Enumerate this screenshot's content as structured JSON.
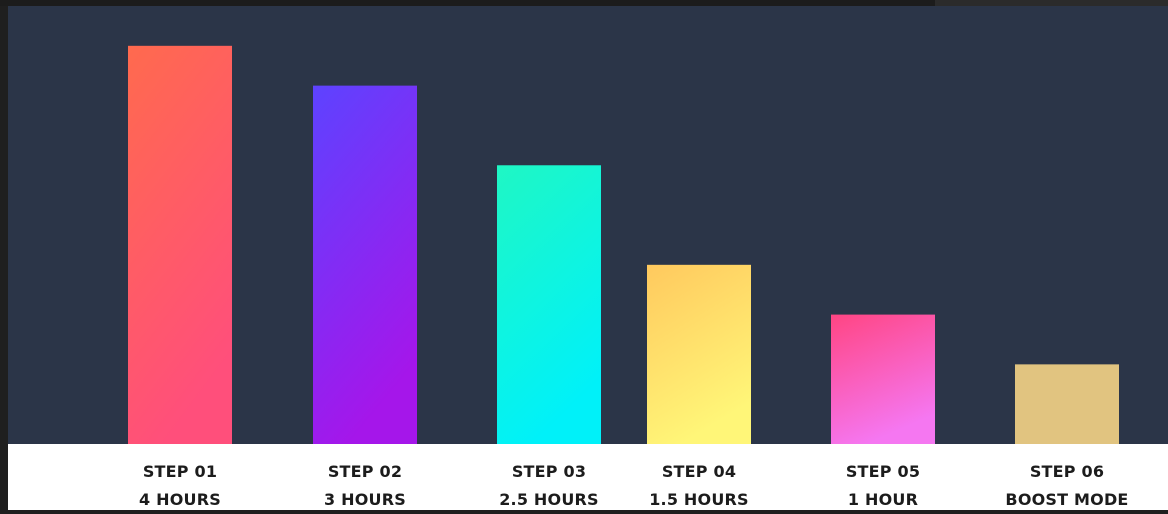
{
  "chart_data": {
    "type": "bar",
    "categories": [
      "STEP 01",
      "STEP 02",
      "STEP 03",
      "STEP 04",
      "STEP 05",
      "STEP 06"
    ],
    "sublabels": [
      "4 HOURS",
      "3 HOURS",
      "2.5 HOURS",
      "1.5 HOURS",
      "1 HOUR",
      "BOOST MODE"
    ],
    "values": [
      4,
      3.6,
      2.8,
      1.8,
      1.3,
      0.8
    ],
    "ylim": [
      0,
      4.4
    ],
    "grid": false,
    "title": "",
    "xlabel": "",
    "ylabel": "",
    "colors": [
      [
        "#ff6a4e",
        "#ff4f7b"
      ],
      [
        "#5d43ff",
        "#a516ea"
      ],
      [
        "#1ff7c4",
        "#00f1f9"
      ],
      [
        "#ffc95e",
        "#fff678"
      ],
      [
        "#ff4583",
        "#f577f1"
      ],
      [
        "#e1c480",
        "#e1c480"
      ]
    ],
    "background": "#2b3548",
    "label_area_background": "#ffffff"
  }
}
